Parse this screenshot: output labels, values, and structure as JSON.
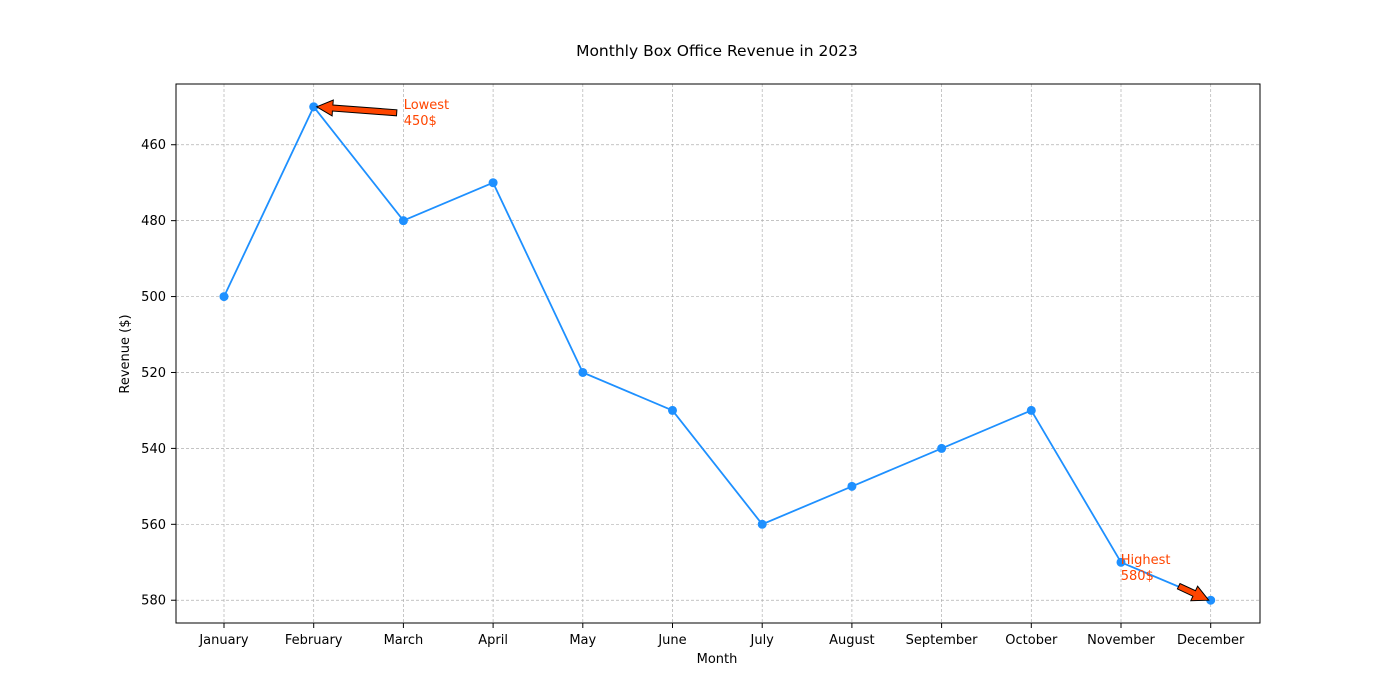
{
  "chart_data": {
    "type": "line",
    "title": "Monthly Box Office Revenue in 2023",
    "xlabel": "Month",
    "ylabel": "Revenue ($)",
    "categories": [
      "January",
      "February",
      "March",
      "April",
      "May",
      "June",
      "July",
      "August",
      "September",
      "October",
      "November",
      "December"
    ],
    "series": [
      {
        "values": [
          500,
          450,
          480,
          470,
          520,
          530,
          560,
          550,
          540,
          530,
          570,
          580
        ],
        "color": "#1e90ff",
        "marker": "circle"
      }
    ],
    "ylim": [
      586,
      444
    ],
    "y_inverted": true,
    "yticks": [
      460,
      480,
      500,
      520,
      540,
      560,
      580
    ],
    "grid": true,
    "annotations": [
      {
        "label_line1": "Lowest",
        "label_line2": "450$",
        "target_category": "February",
        "target_value": 450,
        "color": "#ff4500"
      },
      {
        "label_line1": "Highest",
        "label_line2": "580$",
        "target_category": "December",
        "target_value": 580,
        "color": "#ff4500"
      }
    ]
  }
}
